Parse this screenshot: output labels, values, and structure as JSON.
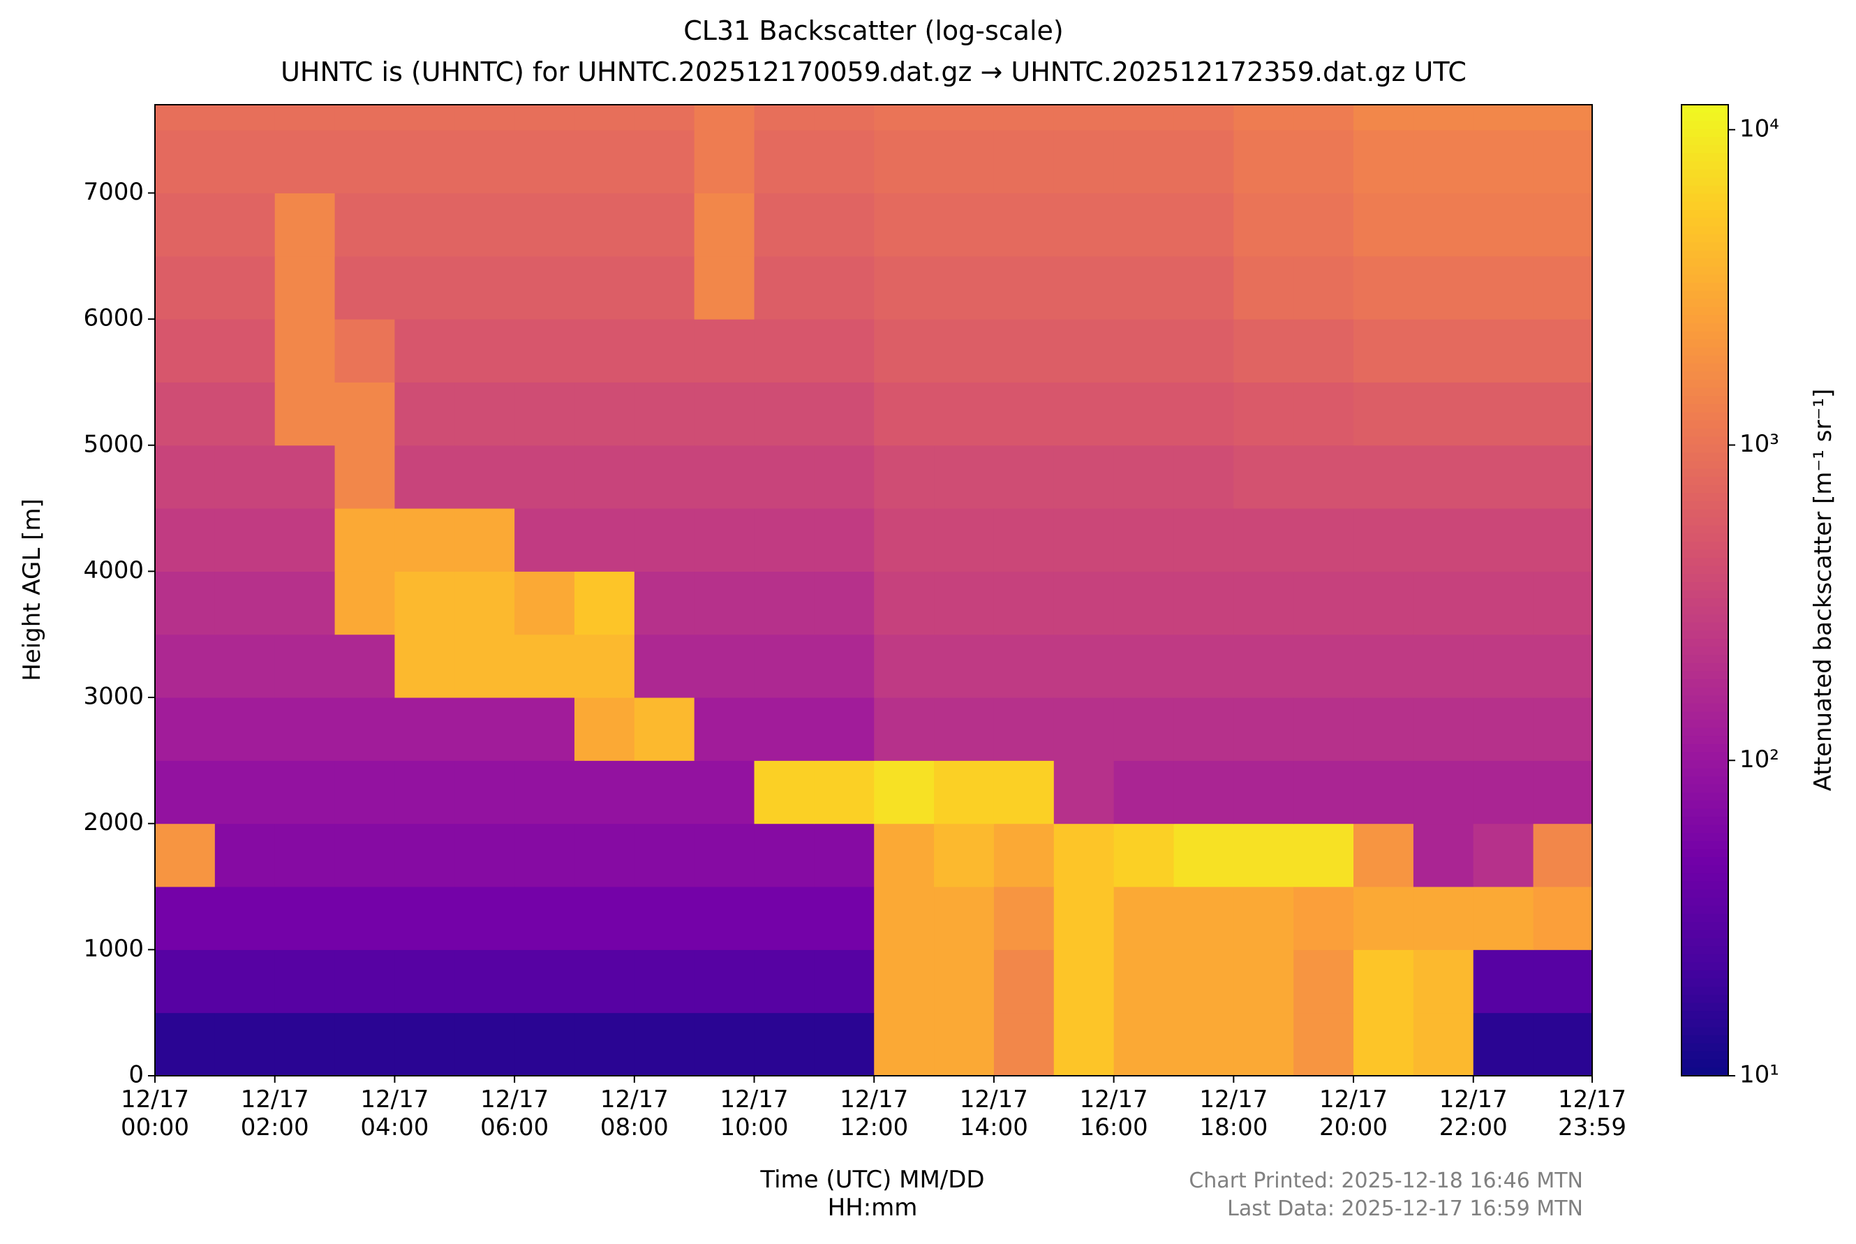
{
  "chart_data": {
    "type": "heatmap",
    "title": "CL31 Backscatter (log-scale)",
    "subtitle": "UHNTC is (UHNTC) for UHNTC.202512170059.dat.gz → UHNTC.202512172359.dat.gz UTC",
    "x_label": "Time (UTC) MM/DD\nHH:mm",
    "y_label": "Height AGL [m]",
    "colorbar_label": "Attenuated backscatter [m⁻¹ sr⁻¹]",
    "annotations": [
      "Chart Printed: 2025-12-18 16:46 MTN",
      "Last Data: 2025-12-17 16:59 MTN"
    ],
    "xlim": [
      0,
      23.983
    ],
    "ylim": [
      0,
      7700
    ],
    "xticks": [
      {
        "value": 0,
        "label": "12/17\n00:00"
      },
      {
        "value": 2,
        "label": "12/17\n02:00"
      },
      {
        "value": 4,
        "label": "12/17\n04:00"
      },
      {
        "value": 6,
        "label": "12/17\n06:00"
      },
      {
        "value": 8,
        "label": "12/17\n08:00"
      },
      {
        "value": 10,
        "label": "12/17\n10:00"
      },
      {
        "value": 12,
        "label": "12/17\n12:00"
      },
      {
        "value": 14,
        "label": "12/17\n14:00"
      },
      {
        "value": 16,
        "label": "12/17\n16:00"
      },
      {
        "value": 18,
        "label": "12/17\n18:00"
      },
      {
        "value": 20,
        "label": "12/17\n20:00"
      },
      {
        "value": 22,
        "label": "12/17\n22:00"
      },
      {
        "value": 23.983,
        "label": "12/17\n23:59"
      }
    ],
    "yticks": [
      0,
      1000,
      2000,
      3000,
      4000,
      5000,
      6000,
      7000
    ],
    "x_bins": [
      0,
      1,
      2,
      3,
      4,
      5,
      6,
      7,
      8,
      9,
      10,
      11,
      12,
      13,
      14,
      15,
      16,
      17,
      18,
      19,
      20,
      21,
      22,
      23,
      23.983
    ],
    "y_bins": [
      0,
      500,
      1000,
      1500,
      2000,
      2500,
      3000,
      3500,
      4000,
      4500,
      5000,
      5500,
      6000,
      6500,
      7000,
      7500,
      7700
    ],
    "z": [
      [
        15,
        15,
        15,
        15,
        15,
        15,
        15,
        15,
        15,
        15,
        15,
        15,
        3000,
        3000,
        1500,
        5000,
        3000,
        3000,
        3000,
        2000,
        5000,
        4000,
        15,
        15
      ],
      [
        30,
        30,
        30,
        30,
        30,
        30,
        30,
        30,
        30,
        30,
        30,
        30,
        3000,
        3000,
        1500,
        5000,
        3000,
        3000,
        3000,
        2000,
        5000,
        4000,
        30,
        30
      ],
      [
        50,
        50,
        50,
        50,
        50,
        50,
        50,
        50,
        50,
        50,
        50,
        50,
        3000,
        3000,
        2000,
        5000,
        3000,
        3000,
        3000,
        2500,
        3000,
        3000,
        3000,
        2500
      ],
      [
        2000,
        70,
        70,
        70,
        70,
        70,
        70,
        70,
        70,
        70,
        70,
        70,
        3000,
        4000,
        3000,
        5000,
        6000,
        8000,
        8000,
        8000,
        2000,
        150,
        200,
        1500
      ],
      [
        90,
        90,
        90,
        90,
        90,
        90,
        90,
        90,
        90,
        90,
        6000,
        6000,
        8000,
        6000,
        6000,
        200,
        150,
        150,
        150,
        150,
        150,
        150,
        150,
        150
      ],
      [
        120,
        120,
        120,
        120,
        120,
        120,
        120,
        3000,
        4000,
        120,
        120,
        120,
        200,
        200,
        200,
        200,
        200,
        200,
        200,
        200,
        200,
        200,
        200,
        200
      ],
      [
        160,
        160,
        160,
        160,
        4000,
        4000,
        4000,
        4000,
        160,
        160,
        160,
        160,
        250,
        250,
        250,
        250,
        250,
        250,
        250,
        250,
        250,
        250,
        250,
        250
      ],
      [
        200,
        200,
        200,
        3000,
        4000,
        4000,
        3000,
        5000,
        200,
        200,
        200,
        200,
        300,
        300,
        300,
        300,
        300,
        300,
        300,
        300,
        300,
        300,
        300,
        300
      ],
      [
        260,
        260,
        260,
        3000,
        3000,
        3000,
        260,
        260,
        260,
        260,
        260,
        260,
        350,
        350,
        350,
        350,
        350,
        350,
        350,
        350,
        350,
        350,
        350,
        350
      ],
      [
        320,
        320,
        320,
        1500,
        320,
        320,
        320,
        320,
        320,
        320,
        320,
        320,
        400,
        400,
        400,
        400,
        400,
        400,
        450,
        450,
        450,
        450,
        450,
        450
      ],
      [
        400,
        400,
        1500,
        1500,
        400,
        400,
        400,
        400,
        400,
        400,
        400,
        400,
        500,
        500,
        500,
        500,
        500,
        500,
        550,
        550,
        600,
        600,
        600,
        600
      ],
      [
        500,
        500,
        1500,
        1000,
        500,
        500,
        500,
        500,
        500,
        500,
        500,
        500,
        600,
        600,
        600,
        600,
        600,
        600,
        700,
        700,
        800,
        800,
        800,
        800
      ],
      [
        600,
        600,
        1500,
        600,
        600,
        600,
        600,
        600,
        600,
        1500,
        600,
        600,
        700,
        700,
        700,
        700,
        700,
        700,
        900,
        900,
        1000,
        1000,
        1000,
        1000
      ],
      [
        700,
        700,
        1500,
        700,
        700,
        700,
        700,
        700,
        700,
        1500,
        700,
        700,
        800,
        800,
        800,
        800,
        800,
        800,
        1000,
        1000,
        1200,
        1200,
        1200,
        1200
      ],
      [
        800,
        800,
        800,
        800,
        800,
        800,
        800,
        800,
        800,
        1200,
        800,
        800,
        900,
        900,
        900,
        900,
        900,
        900,
        1100,
        1100,
        1300,
        1300,
        1300,
        1300
      ],
      [
        900,
        900,
        900,
        900,
        900,
        900,
        900,
        900,
        900,
        1200,
        900,
        900,
        1000,
        1000,
        1000,
        1000,
        1000,
        1000,
        1200,
        1200,
        1500,
        1500,
        1500,
        1500
      ]
    ],
    "color_scale": "log",
    "clim": [
      10,
      12000
    ],
    "colorbar_ticks": [
      {
        "value": 10,
        "label": "10¹"
      },
      {
        "value": 100,
        "label": "10²"
      },
      {
        "value": 1000,
        "label": "10³"
      },
      {
        "value": 10000,
        "label": "10⁴"
      }
    ],
    "colormap": [
      "#0d0887",
      "#46039f",
      "#7201a8",
      "#9c179e",
      "#bd3786",
      "#d8576b",
      "#ed7953",
      "#fb9f3a",
      "#fdca26",
      "#f0f921"
    ]
  }
}
